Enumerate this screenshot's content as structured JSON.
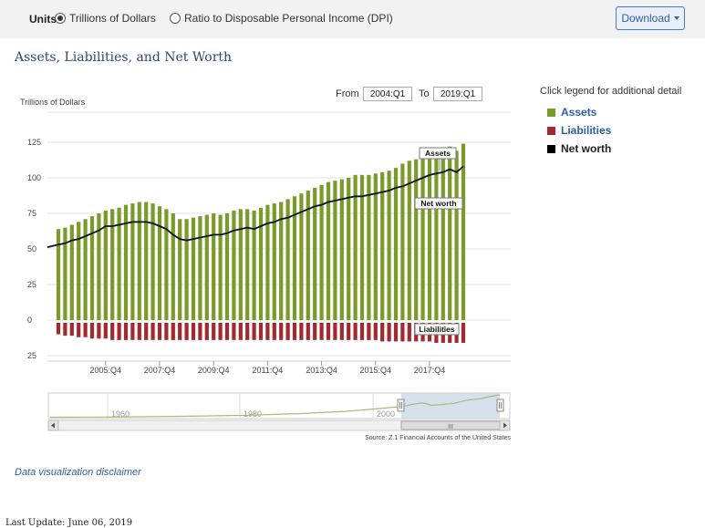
{
  "units": {
    "label": "Units",
    "options": [
      {
        "label": "Trillions of Dollars",
        "selected": true
      },
      {
        "label": "Ratio to Disposable Personal Income (DPI)",
        "selected": false
      }
    ]
  },
  "download_label": "Download",
  "title": "Assets, Liabilities, and Net Worth",
  "range": {
    "from_label": "From",
    "from_value": "2004:Q1",
    "to_label": "To",
    "to_value": "2019:Q1"
  },
  "legend": {
    "hint": "Click legend for additional detail",
    "items": [
      {
        "label": "Assets",
        "color": "#7a9a2a"
      },
      {
        "label": "Liabilities",
        "color": "#a3282f"
      },
      {
        "label": "Net worth",
        "color": "#000000"
      }
    ]
  },
  "navigator": {
    "labels": [
      "1960",
      "1980",
      "2000"
    ],
    "scroll_grip": "III"
  },
  "source": "Source: Z.1 Financial Accounts of the United States",
  "disclaimer": "Data visualization disclaimer",
  "last_update": "Last Update: June 06, 2019",
  "chart_data": {
    "type": "bar",
    "ylabel": "Trillions of Dollars",
    "y_ticks": [
      -25,
      0,
      25,
      50,
      75,
      100,
      125
    ],
    "y_tick_labels": [
      "25",
      "0",
      "25",
      "50",
      "75",
      "100",
      "125"
    ],
    "ylim": [
      -25,
      135
    ],
    "x_tick_labels": [
      "2005:Q4",
      "2007:Q4",
      "2009:Q4",
      "2011:Q4",
      "2013:Q4",
      "2015:Q4",
      "2017:Q4"
    ],
    "x_tick_indices": [
      7,
      15,
      23,
      31,
      39,
      47,
      55
    ],
    "annotations": [
      "Assets",
      "Net worth",
      "Liabilities"
    ],
    "quarters": [
      "2004:Q1",
      "2004:Q2",
      "2004:Q3",
      "2004:Q4",
      "2005:Q1",
      "2005:Q2",
      "2005:Q3",
      "2005:Q4",
      "2006:Q1",
      "2006:Q2",
      "2006:Q3",
      "2006:Q4",
      "2007:Q1",
      "2007:Q2",
      "2007:Q3",
      "2007:Q4",
      "2008:Q1",
      "2008:Q2",
      "2008:Q3",
      "2008:Q4",
      "2009:Q1",
      "2009:Q2",
      "2009:Q3",
      "2009:Q4",
      "2010:Q1",
      "2010:Q2",
      "2010:Q3",
      "2010:Q4",
      "2011:Q1",
      "2011:Q2",
      "2011:Q3",
      "2011:Q4",
      "2012:Q1",
      "2012:Q2",
      "2012:Q3",
      "2012:Q4",
      "2013:Q1",
      "2013:Q2",
      "2013:Q3",
      "2013:Q4",
      "2014:Q1",
      "2014:Q2",
      "2014:Q3",
      "2014:Q4",
      "2015:Q1",
      "2015:Q2",
      "2015:Q3",
      "2015:Q4",
      "2016:Q1",
      "2016:Q2",
      "2016:Q3",
      "2016:Q4",
      "2017:Q1",
      "2017:Q2",
      "2017:Q3",
      "2017:Q4",
      "2018:Q1",
      "2018:Q2",
      "2018:Q3",
      "2018:Q4",
      "2019:Q1"
    ],
    "series": [
      {
        "name": "Assets",
        "values": [
          64,
          65,
          67,
          69,
          71,
          73,
          75,
          77,
          78,
          79,
          81,
          82,
          83,
          83,
          82,
          80,
          78,
          75,
          71,
          71,
          72,
          73,
          74,
          75,
          74,
          75,
          77,
          78,
          78,
          77,
          79,
          81,
          82,
          83,
          85,
          87,
          89,
          91,
          93,
          95,
          97,
          98,
          99,
          100,
          102,
          102,
          102,
          103,
          104,
          105,
          107,
          110,
          112,
          113,
          115,
          117,
          119,
          120,
          122,
          119,
          124
        ]
      },
      {
        "name": "Liabilities",
        "values": [
          -10,
          -11,
          -11,
          -12,
          -12,
          -13,
          -13,
          -13,
          -14,
          -14,
          -14,
          -14,
          -14,
          -14,
          -14,
          -14,
          -14,
          -14,
          -14,
          -14,
          -14,
          -14,
          -14,
          -14,
          -14,
          -14,
          -14,
          -14,
          -14,
          -14,
          -14,
          -14,
          -14,
          -14,
          -14,
          -14,
          -14,
          -14,
          -14,
          -14,
          -14,
          -14,
          -14,
          -14,
          -14,
          -14,
          -14,
          -14,
          -15,
          -15,
          -15,
          -15,
          -15,
          -15,
          -15,
          -15,
          -16,
          -16,
          -16,
          -16,
          -16
        ]
      },
      {
        "name": "Net worth",
        "values": [
          53,
          54,
          56,
          57,
          59,
          61,
          63,
          66,
          66,
          67,
          68,
          69,
          69,
          69,
          68,
          66,
          64,
          60,
          57,
          56,
          57,
          58,
          59,
          60,
          60,
          61,
          63,
          64,
          65,
          64,
          66,
          68,
          69,
          71,
          72,
          74,
          76,
          78,
          80,
          81,
          83,
          84,
          85,
          86,
          87,
          87,
          88,
          89,
          90,
          91,
          93,
          94,
          96,
          98,
          100,
          102,
          103,
          104,
          106,
          104,
          108
        ]
      }
    ]
  }
}
